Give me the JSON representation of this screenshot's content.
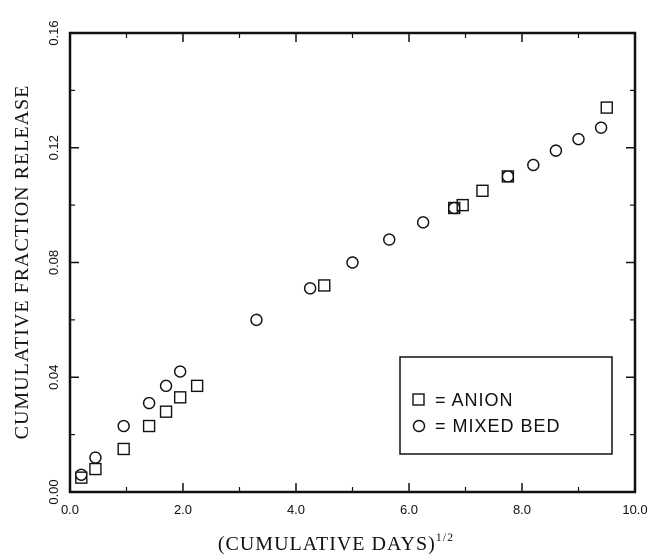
{
  "chart_data": {
    "type": "scatter",
    "xlabel": "(CUMULATIVE DAYS)",
    "xlabel_superscript": "1/2",
    "ylabel": "CUMULATIVE FRACTION RELEASE",
    "xlim": [
      0.0,
      10.0
    ],
    "ylim": [
      0.0,
      0.16
    ],
    "xticks": [
      "0.0",
      "2.0",
      "4.0",
      "6.0",
      "8.0",
      "10.0"
    ],
    "yticks": [
      "0.00",
      "0.04",
      "0.08",
      "0.12",
      "0.16"
    ],
    "grid": false,
    "legend_position": "bottom-right",
    "series": [
      {
        "name": "ANION",
        "marker": "square",
        "legend_label": "= ANION",
        "x": [
          0.2,
          0.45,
          0.95,
          1.4,
          1.7,
          1.95,
          2.25,
          4.5,
          6.8,
          6.95,
          7.3,
          7.75,
          9.5
        ],
        "y": [
          0.005,
          0.008,
          0.015,
          0.023,
          0.028,
          0.033,
          0.037,
          0.072,
          0.099,
          0.1,
          0.105,
          0.11,
          0.134
        ]
      },
      {
        "name": "MIXED BED",
        "marker": "circle",
        "legend_label": "= MIXED BED",
        "x": [
          0.2,
          0.45,
          0.95,
          1.4,
          1.7,
          1.95,
          3.3,
          4.25,
          5.0,
          5.65,
          6.25,
          6.8,
          7.75,
          8.2,
          8.6,
          9.0,
          9.4
        ],
        "y": [
          0.006,
          0.012,
          0.023,
          0.031,
          0.037,
          0.042,
          0.06,
          0.071,
          0.08,
          0.088,
          0.094,
          0.099,
          0.11,
          0.114,
          0.119,
          0.123,
          0.127
        ]
      }
    ]
  }
}
